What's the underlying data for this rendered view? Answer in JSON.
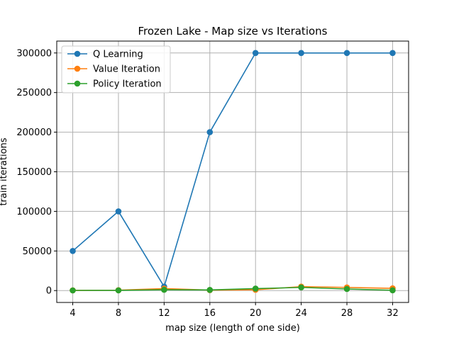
{
  "chart_data": {
    "type": "line",
    "title": "Frozen Lake - Map size vs Iterations",
    "xlabel": "map size (length of one side)",
    "ylabel": "train iterations",
    "x": [
      4,
      8,
      12,
      16,
      20,
      24,
      28,
      32
    ],
    "xlim": [
      2.6,
      33.4
    ],
    "ylim": [
      -15000,
      315000
    ],
    "xticks": [
      4,
      8,
      12,
      16,
      20,
      24,
      28,
      32
    ],
    "yticks": [
      0,
      50000,
      100000,
      150000,
      200000,
      250000,
      300000
    ],
    "grid": true,
    "legend": "upper-left",
    "series": [
      {
        "name": "Q Learning",
        "color": "#1f77b4",
        "values": [
          50000,
          100000,
          5000,
          200000,
          300000,
          300000,
          300000,
          300000
        ]
      },
      {
        "name": "Value Iteration",
        "color": "#ff7f0e",
        "values": [
          300,
          500,
          2500,
          600,
          1000,
          5000,
          4000,
          2800
        ]
      },
      {
        "name": "Policy Iteration",
        "color": "#2ca02c",
        "values": [
          200,
          300,
          1000,
          800,
          2500,
          4000,
          2000,
          400
        ]
      }
    ]
  }
}
